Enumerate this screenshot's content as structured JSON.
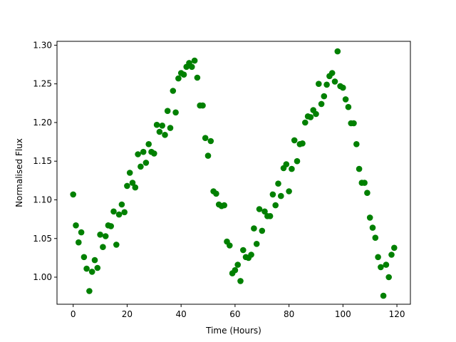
{
  "chart_data": {
    "type": "scatter",
    "title": "",
    "xlabel": "Time (Hours)",
    "ylabel": "Normalised Flux",
    "xlim": [
      -6,
      125
    ],
    "ylim": [
      0.965,
      1.305
    ],
    "xticks": [
      0,
      20,
      40,
      60,
      80,
      100,
      120
    ],
    "yticks": [
      1.0,
      1.05,
      1.1,
      1.15,
      1.2,
      1.25,
      1.3
    ],
    "ytick_labels": [
      "1.00",
      "1.05",
      "1.10",
      "1.15",
      "1.20",
      "1.25",
      "1.30"
    ],
    "xtick_labels": [
      "0",
      "20",
      "40",
      "60",
      "80",
      "100",
      "120"
    ],
    "grid": false,
    "marker_color": "#008000",
    "points": [
      [
        0,
        1.107
      ],
      [
        1,
        1.067
      ],
      [
        2,
        1.045
      ],
      [
        3,
        1.058
      ],
      [
        4,
        1.026
      ],
      [
        5,
        1.011
      ],
      [
        6,
        0.982
      ],
      [
        7,
        1.007
      ],
      [
        8,
        1.022
      ],
      [
        9,
        1.012
      ],
      [
        10,
        1.055
      ],
      [
        11,
        1.039
      ],
      [
        12,
        1.053
      ],
      [
        13,
        1.067
      ],
      [
        14,
        1.066
      ],
      [
        15,
        1.085
      ],
      [
        16,
        1.042
      ],
      [
        17,
        1.081
      ],
      [
        18,
        1.094
      ],
      [
        19,
        1.084
      ],
      [
        20,
        1.118
      ],
      [
        21,
        1.135
      ],
      [
        22,
        1.122
      ],
      [
        23,
        1.116
      ],
      [
        24,
        1.159
      ],
      [
        25,
        1.143
      ],
      [
        26,
        1.162
      ],
      [
        27,
        1.148
      ],
      [
        28,
        1.172
      ],
      [
        29,
        1.162
      ],
      [
        30,
        1.16
      ],
      [
        31,
        1.197
      ],
      [
        32,
        1.188
      ],
      [
        33,
        1.196
      ],
      [
        34,
        1.184
      ],
      [
        35,
        1.215
      ],
      [
        36,
        1.193
      ],
      [
        37,
        1.241
      ],
      [
        38,
        1.213
      ],
      [
        39,
        1.257
      ],
      [
        40,
        1.264
      ],
      [
        41,
        1.262
      ],
      [
        42,
        1.272
      ],
      [
        43,
        1.277
      ],
      [
        44,
        1.272
      ],
      [
        45,
        1.28
      ],
      [
        46,
        1.258
      ],
      [
        47,
        1.222
      ],
      [
        48,
        1.222
      ],
      [
        49,
        1.18
      ],
      [
        50,
        1.157
      ],
      [
        51,
        1.176
      ],
      [
        52,
        1.111
      ],
      [
        53,
        1.108
      ],
      [
        54,
        1.094
      ],
      [
        55,
        1.092
      ],
      [
        56,
        1.093
      ],
      [
        57,
        1.046
      ],
      [
        58,
        1.041
      ],
      [
        59,
        1.005
      ],
      [
        60,
        1.009
      ],
      [
        61,
        1.016
      ],
      [
        62,
        0.995
      ],
      [
        63,
        1.035
      ],
      [
        64,
        1.026
      ],
      [
        65,
        1.025
      ],
      [
        66,
        1.029
      ],
      [
        67,
        1.063
      ],
      [
        68,
        1.043
      ],
      [
        69,
        1.088
      ],
      [
        70,
        1.06
      ],
      [
        71,
        1.085
      ],
      [
        72,
        1.079
      ],
      [
        73,
        1.079
      ],
      [
        74,
        1.107
      ],
      [
        75,
        1.093
      ],
      [
        76,
        1.121
      ],
      [
        77,
        1.105
      ],
      [
        78,
        1.141
      ],
      [
        79,
        1.146
      ],
      [
        80,
        1.111
      ],
      [
        81,
        1.14
      ],
      [
        82,
        1.177
      ],
      [
        83,
        1.15
      ],
      [
        84,
        1.172
      ],
      [
        85,
        1.173
      ],
      [
        86,
        1.2
      ],
      [
        87,
        1.208
      ],
      [
        88,
        1.207
      ],
      [
        89,
        1.216
      ],
      [
        90,
        1.211
      ],
      [
        91,
        1.25
      ],
      [
        92,
        1.224
      ],
      [
        93,
        1.234
      ],
      [
        94,
        1.249
      ],
      [
        95,
        1.26
      ],
      [
        96,
        1.264
      ],
      [
        97,
        1.253
      ],
      [
        98,
        1.292
      ],
      [
        99,
        1.247
      ],
      [
        100,
        1.245
      ],
      [
        101,
        1.23
      ],
      [
        102,
        1.22
      ],
      [
        103,
        1.199
      ],
      [
        104,
        1.199
      ],
      [
        105,
        1.172
      ],
      [
        106,
        1.14
      ],
      [
        107,
        1.122
      ],
      [
        108,
        1.122
      ],
      [
        109,
        1.109
      ],
      [
        110,
        1.077
      ],
      [
        111,
        1.064
      ],
      [
        112,
        1.051
      ],
      [
        113,
        1.026
      ],
      [
        114,
        1.013
      ],
      [
        115,
        0.976
      ],
      [
        116,
        1.016
      ],
      [
        117,
        1.0
      ],
      [
        118,
        1.029
      ],
      [
        119,
        1.038
      ]
    ]
  }
}
